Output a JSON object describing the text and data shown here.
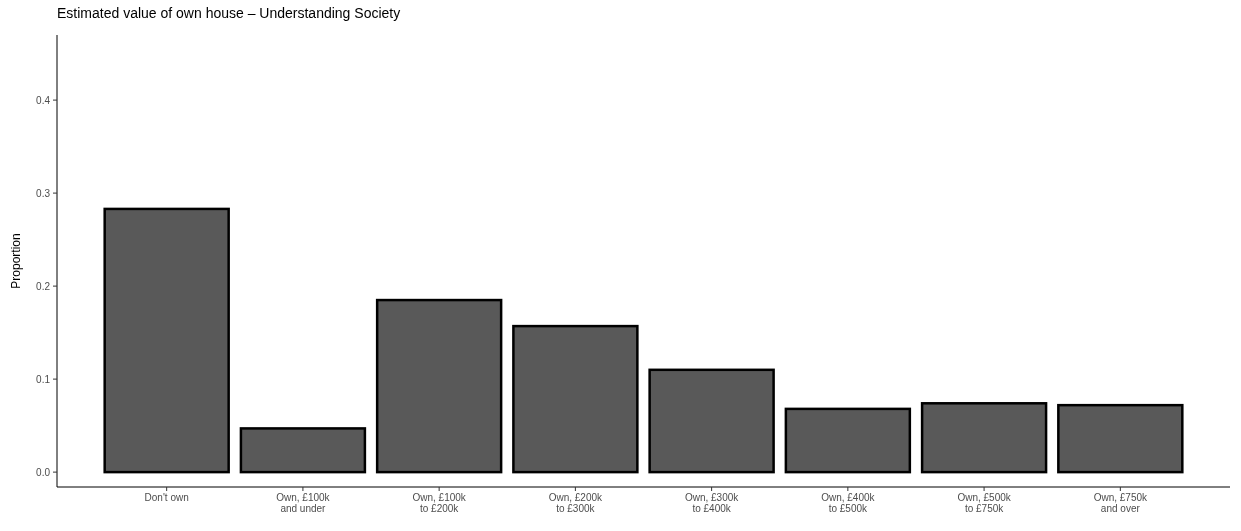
{
  "chart_data": {
    "type": "bar",
    "title": "Estimated value of own house – Understanding Society",
    "ylabel": "Proportion",
    "categories": [
      "Don't own",
      "Own, £100k\nand under",
      "Own, £100k\nto £200k",
      "Own, £200k\nto £300k",
      "Own, £300k\nto £400k",
      "Own, £400k\nto £500k",
      "Own, £500k\nto £750k",
      "Own, £750k\nand over"
    ],
    "values": [
      0.283,
      0.047,
      0.185,
      0.157,
      0.11,
      0.068,
      0.074,
      0.072
    ],
    "color": "#595959",
    "ylim": [
      -0.016,
      0.47
    ],
    "yticks": [
      {
        "value": 0,
        "label": "0.0"
      },
      0.1,
      0.2,
      0.3,
      0.4
    ],
    "grid": false
  }
}
